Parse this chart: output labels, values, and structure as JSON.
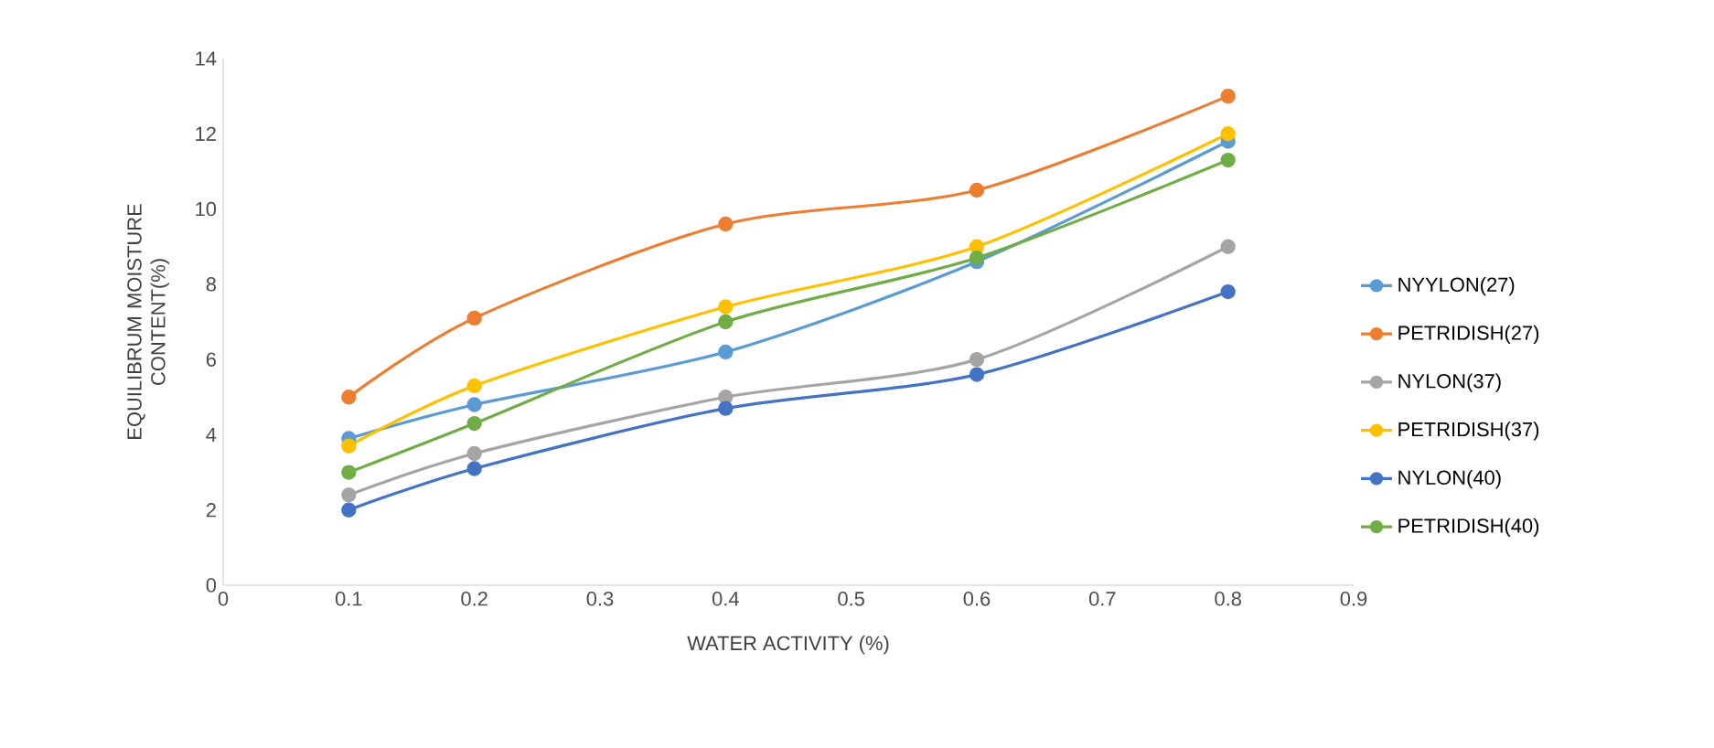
{
  "chart_data": {
    "type": "line",
    "xlabel": "WATER ACTIVITY (%)",
    "ylabel": "EQUILIBRUM MOISTURE CONTENT(%)",
    "x": [
      0.1,
      0.2,
      0.4,
      0.6,
      0.8
    ],
    "series": [
      {
        "name": "NYYLON(27)",
        "color": "#5b9bd5",
        "values": [
          3.9,
          4.8,
          6.2,
          8.6,
          11.8
        ]
      },
      {
        "name": "PETRIDISH(27)",
        "color": "#ed7d31",
        "values": [
          5.0,
          7.1,
          9.6,
          10.5,
          13.0
        ]
      },
      {
        "name": "NYLON(37)",
        "color": "#a5a5a5",
        "values": [
          2.4,
          3.5,
          5.0,
          6.0,
          9.0
        ]
      },
      {
        "name": "PETRIDISH(37)",
        "color": "#ffc000",
        "values": [
          3.7,
          5.3,
          7.4,
          9.0,
          12.0
        ]
      },
      {
        "name": "NYLON(40)",
        "color": "#4472c4",
        "values": [
          2.0,
          3.1,
          4.7,
          5.6,
          7.8
        ]
      },
      {
        "name": "PETRIDISH(40)",
        "color": "#70ad47",
        "values": [
          3.0,
          4.3,
          7.0,
          8.7,
          11.3
        ]
      }
    ],
    "xlim": [
      0,
      0.9
    ],
    "xticks": [
      0,
      0.1,
      0.2,
      0.3,
      0.4,
      0.5,
      0.6,
      0.7,
      0.8,
      0.9
    ],
    "ylim": [
      0,
      14
    ],
    "yticks": [
      0,
      2,
      4,
      6,
      8,
      10,
      12,
      14
    ],
    "grid": false,
    "legend": "right",
    "marker": "circle",
    "line_style": "solid"
  }
}
